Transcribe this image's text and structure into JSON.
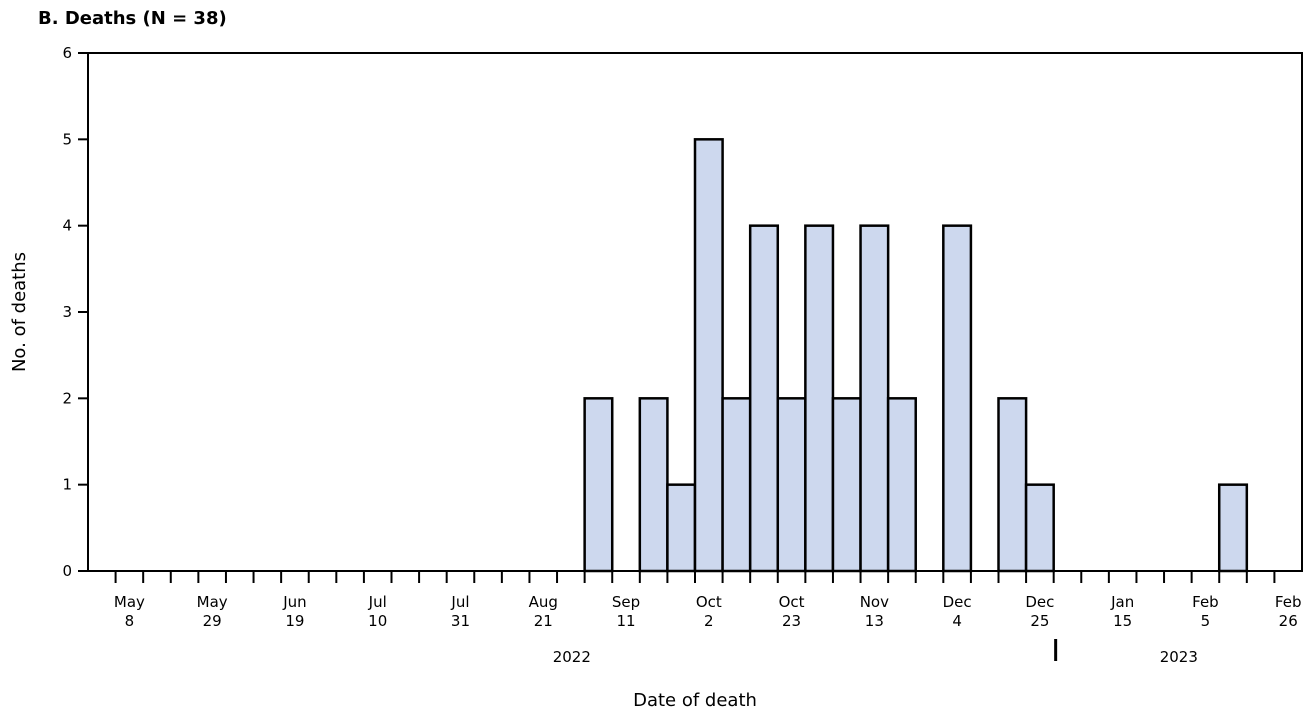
{
  "chart_data": {
    "type": "bar",
    "title": "B. Deaths (N = 38)",
    "xlabel": "Date of death",
    "ylabel": "No. of deaths",
    "ylim": [
      0,
      6
    ],
    "yticks": [
      0,
      1,
      2,
      3,
      4,
      5,
      6
    ],
    "grid": false,
    "x_unit": "week",
    "x_range": [
      "2022-05-01",
      "2023-03-05"
    ],
    "bars": [
      {
        "week": "2022-09-04",
        "value": 2
      },
      {
        "week": "2022-09-18",
        "value": 2
      },
      {
        "week": "2022-09-25",
        "value": 1
      },
      {
        "week": "2022-10-02",
        "value": 5
      },
      {
        "week": "2022-10-09",
        "value": 2
      },
      {
        "week": "2022-10-16",
        "value": 4
      },
      {
        "week": "2022-10-23",
        "value": 2
      },
      {
        "week": "2022-10-30",
        "value": 4
      },
      {
        "week": "2022-11-06",
        "value": 2
      },
      {
        "week": "2022-11-13",
        "value": 4
      },
      {
        "week": "2022-11-20",
        "value": 2
      },
      {
        "week": "2022-12-04",
        "value": 4
      },
      {
        "week": "2022-12-18",
        "value": 2
      },
      {
        "week": "2022-12-25",
        "value": 1
      },
      {
        "week": "2023-02-12",
        "value": 1
      }
    ],
    "xticks": [
      {
        "date": "2022-05-08",
        "month": "May",
        "day": "8"
      },
      {
        "date": "2022-05-29",
        "month": "May",
        "day": "29"
      },
      {
        "date": "2022-06-19",
        "month": "Jun",
        "day": "19"
      },
      {
        "date": "2022-07-10",
        "month": "Jul",
        "day": "10"
      },
      {
        "date": "2022-07-31",
        "month": "Jul",
        "day": "31"
      },
      {
        "date": "2022-08-21",
        "month": "Aug",
        "day": "21"
      },
      {
        "date": "2022-09-11",
        "month": "Sep",
        "day": "11"
      },
      {
        "date": "2022-10-02",
        "month": "Oct",
        "day": "2"
      },
      {
        "date": "2022-10-23",
        "month": "Oct",
        "day": "23"
      },
      {
        "date": "2022-11-13",
        "month": "Nov",
        "day": "13"
      },
      {
        "date": "2022-12-04",
        "month": "Dec",
        "day": "4"
      },
      {
        "date": "2022-12-25",
        "month": "Dec",
        "day": "25"
      },
      {
        "date": "2023-01-15",
        "month": "Jan",
        "day": "15"
      },
      {
        "date": "2023-02-05",
        "month": "Feb",
        "day": "5"
      },
      {
        "date": "2023-02-26",
        "month": "Feb",
        "day": "26"
      }
    ],
    "year_labels": [
      "2022",
      "2023"
    ],
    "year_boundary": "2023-01-01",
    "colors": {
      "bar_fill": "#cdd8ee",
      "bar_stroke": "#000000"
    }
  }
}
